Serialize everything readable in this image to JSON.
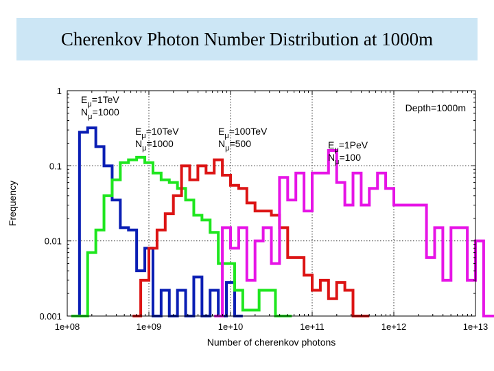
{
  "title": "Cherenkov Photon Number Distribution at 1000m",
  "chart_data": {
    "type": "line",
    "style": "step-histogram",
    "x_scale": "log",
    "y_scale": "log",
    "xlim": [
      100000000,
      10000000000000
    ],
    "ylim": [
      0.001,
      1
    ],
    "xlabel": "Number of cherenkov photons",
    "ylabel": "Frequency",
    "x_ticks": [
      "1e+08",
      "1e+09",
      "1e+10",
      "1e+11",
      "1e+12",
      "1e+13"
    ],
    "y_ticks": [
      "0.001",
      "0.01",
      "0.1",
      "1"
    ],
    "depth_label": "Depth=1000m",
    "annotations": [
      {
        "series": "E=1TeV",
        "energy_sym": "E",
        "energy_sub": "μ",
        "energy_val": "=1TeV",
        "n_sym": "N",
        "n_sub": "μ",
        "n_val": "=1000"
      },
      {
        "series": "E=10TeV",
        "energy_sym": "E",
        "energy_sub": "μ",
        "energy_val": "=10TeV",
        "n_sym": "N",
        "n_sub": "μ",
        "n_val": "=1000"
      },
      {
        "series": "E=100TeV",
        "energy_sym": "E",
        "energy_sub": "μ",
        "energy_val": "=100TeV",
        "n_sym": "N",
        "n_sub": "μ",
        "n_val": "=500"
      },
      {
        "series": "E=1PeV",
        "energy_sym": "E",
        "energy_sub": "μ",
        "energy_val": "=1PeV",
        "n_sym": "N",
        "n_sub": "μ",
        "n_val": "=100"
      }
    ],
    "bin_log_width": 0.1,
    "series": [
      {
        "name": "E=1TeV",
        "color": "#0a1eb4",
        "start_log": 8.05,
        "values": [
          0.001,
          0.28,
          0.32,
          0.18,
          0.1,
          0.035,
          0.015,
          0.014,
          0.004,
          0.008,
          0.001,
          0.0022,
          0.001,
          0.0022,
          0.001,
          0.0033,
          0.001,
          0.0022,
          0.001,
          0.0028,
          0.001
        ]
      },
      {
        "name": "E=10TeV",
        "color": "#1ee61e",
        "start_log": 8.05,
        "values": [
          0.001,
          0.001,
          0.007,
          0.014,
          0.04,
          0.065,
          0.11,
          0.12,
          0.13,
          0.11,
          0.08,
          0.065,
          0.06,
          0.05,
          0.035,
          0.022,
          0.019,
          0.013,
          0.005,
          0.005,
          0.0022,
          0.0012,
          0.0012,
          0.0022,
          0.0022,
          0.001,
          0.001
        ]
      },
      {
        "name": "E=100TeV",
        "color": "#dc1414",
        "start_log": 8.8,
        "values": [
          0.001,
          0.003,
          0.008,
          0.014,
          0.023,
          0.04,
          0.1,
          0.065,
          0.1,
          0.08,
          0.12,
          0.075,
          0.055,
          0.05,
          0.032,
          0.025,
          0.025,
          0.022,
          0.015,
          0.006,
          0.006,
          0.0035,
          0.0022,
          0.003,
          0.0017,
          0.0028,
          0.0022,
          0.001,
          0.001
        ]
      },
      {
        "name": "E=1PeV",
        "color": "#e614e6",
        "start_log": 9.8,
        "values": [
          0.001,
          0.015,
          0.008,
          0.015,
          0.003,
          0.01,
          0.015,
          0.005,
          0.07,
          0.035,
          0.08,
          0.025,
          0.08,
          0.08,
          0.16,
          0.06,
          0.03,
          0.08,
          0.03,
          0.05,
          0.08,
          0.05,
          0.03,
          0.03,
          0.03,
          0.03,
          0.006,
          0.015,
          0.003,
          0.015,
          0.015,
          0.003,
          0.01,
          0.001,
          0.001
        ]
      }
    ]
  }
}
